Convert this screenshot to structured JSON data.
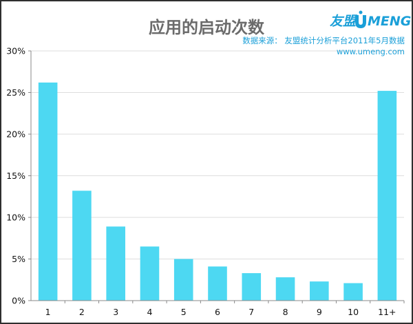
{
  "logo": {
    "cn_text": "友盟",
    "en_text": "MENG"
  },
  "source": {
    "line1": "数据来源：  友盟统计分析平台2011年5月数据",
    "line2": "www.umeng.com"
  },
  "colors": {
    "bar": "#4dd8f2",
    "grid": "#dddddd",
    "axis": "#888888",
    "accent": "#1a9fd8"
  },
  "chart_data": {
    "type": "bar",
    "title": "应用的启动次数",
    "xlabel": "",
    "ylabel": "",
    "categories": [
      "1",
      "2",
      "3",
      "4",
      "5",
      "6",
      "7",
      "8",
      "9",
      "10",
      "11+"
    ],
    "values": [
      0.262,
      0.132,
      0.089,
      0.065,
      0.05,
      0.041,
      0.033,
      0.028,
      0.023,
      0.021,
      0.252
    ],
    "ylim": [
      0,
      0.3
    ],
    "yticks": [
      {
        "value": 0,
        "label": "0%"
      },
      {
        "value": 0.05,
        "label": "5%"
      },
      {
        "value": 0.1,
        "label": "10%"
      },
      {
        "value": 0.15,
        "label": "15%"
      },
      {
        "value": 0.2,
        "label": "20%"
      },
      {
        "value": 0.25,
        "label": "25%"
      },
      {
        "value": 0.3,
        "label": "30%"
      }
    ],
    "grid": true,
    "legend": "none"
  }
}
